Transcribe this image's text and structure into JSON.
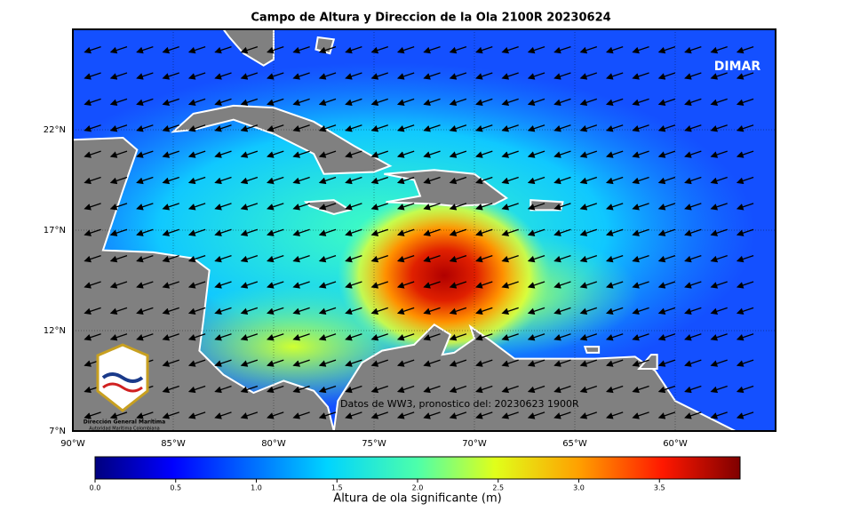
{
  "map": {
    "title": "Campo de Altura y Direccion de la Ola 2100R 20230624",
    "brand": "DIMAR",
    "annotation": "Datos de WW3, pronostico del: 20230623 1900R",
    "logo_title": "Dirección General Marítima",
    "logo_subtitle": "Autoridad Marítima Colombiana",
    "xlim": [
      -90,
      -55
    ],
    "ylim": [
      7,
      27
    ],
    "xticks": [
      {
        "value": -90,
        "label": "90°W"
      },
      {
        "value": -85,
        "label": "85°W"
      },
      {
        "value": -80,
        "label": "80°W"
      },
      {
        "value": -75,
        "label": "75°W"
      },
      {
        "value": -70,
        "label": "70°W"
      },
      {
        "value": -65,
        "label": "65°W"
      },
      {
        "value": -60,
        "label": "60°W"
      }
    ],
    "yticks": [
      {
        "value": 7,
        "label": "7°N"
      },
      {
        "value": 12,
        "label": "12°N"
      },
      {
        "value": 17,
        "label": "17°N"
      },
      {
        "value": 22,
        "label": "22°N"
      }
    ],
    "colorbar": {
      "label": "Altura de ola significante (m)",
      "lim": [
        0,
        4
      ],
      "ticks": [
        {
          "value": 0,
          "label": "0.0"
        },
        0.5,
        {
          "value": 1,
          "label": "1.0"
        },
        1.5,
        {
          "value": 2,
          "label": "2.0"
        },
        2.5,
        {
          "value": 3,
          "label": "3.0"
        },
        3.5
      ]
    }
  }
}
